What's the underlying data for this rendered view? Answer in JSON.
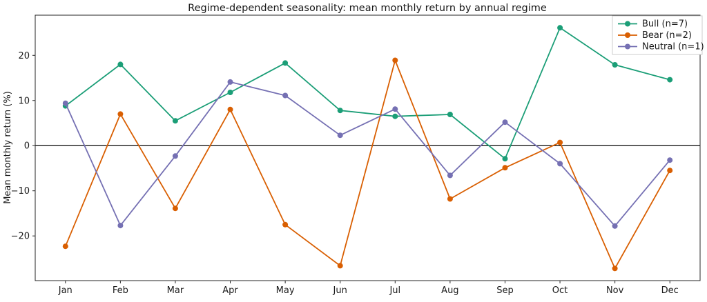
{
  "chart_data": {
    "type": "line",
    "title": "Regime-dependent seasonality: mean monthly return by annual regime",
    "xlabel": "",
    "ylabel": "Mean monthly return (%)",
    "categories": [
      "Jan",
      "Feb",
      "Mar",
      "Apr",
      "May",
      "Jun",
      "Jul",
      "Aug",
      "Sep",
      "Oct",
      "Nov",
      "Dec"
    ],
    "series": [
      {
        "name": "Bull (n=7)",
        "color": "#1b9e77",
        "values": [
          8.8,
          18.0,
          5.5,
          11.8,
          18.3,
          7.8,
          6.5,
          6.9,
          -2.9,
          26.1,
          17.9,
          14.6
        ]
      },
      {
        "name": "Bear (n=2)",
        "color": "#d95f02",
        "values": [
          -22.3,
          7.0,
          -13.9,
          8.0,
          -17.5,
          -26.6,
          18.9,
          -11.8,
          -4.9,
          0.7,
          -27.2,
          -5.5
        ]
      },
      {
        "name": "Neutral (n=1)",
        "color": "#7570b3",
        "values": [
          9.4,
          -17.7,
          -2.3,
          14.1,
          11.1,
          2.3,
          8.1,
          -6.6,
          5.2,
          -4.0,
          -17.8,
          -3.2
        ]
      }
    ],
    "yticks": [
      -20,
      -10,
      0,
      10,
      20
    ],
    "ylim": [
      -29.9,
      28.9
    ],
    "zero_line": true,
    "grid": false,
    "legend_position": "upper right",
    "axis_color": "#262626",
    "zero_line_color": "#000000"
  }
}
